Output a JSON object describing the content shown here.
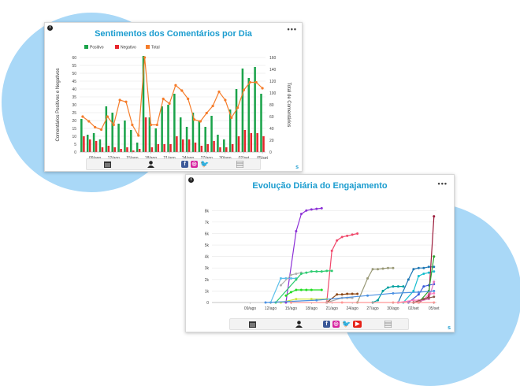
{
  "chart_data": [
    {
      "type": "bar",
      "title": "Sentimentos dos Comentários por Dia",
      "ylabel": "Comentários Positivos e Negativos",
      "y2label": "Total de Comentários",
      "ylim": [
        0,
        60
      ],
      "y2lim": [
        0,
        160
      ],
      "yticks": [
        0,
        5,
        10,
        15,
        20,
        25,
        30,
        35,
        40,
        45,
        50,
        55,
        60
      ],
      "y2ticks": [
        0,
        20,
        40,
        60,
        80,
        100,
        120,
        140,
        160
      ],
      "tick_labels": [
        "09/ago",
        "12/ago",
        "15/ago",
        "18/ago",
        "21/ago",
        "24/ago",
        "27/ago",
        "30/ago",
        "02/set",
        "05/set"
      ],
      "legend_position": "top",
      "colors": {
        "positive": "#1aa34a",
        "negative": "#e8262d",
        "total": "#f57c2a"
      },
      "series": [
        {
          "name": "Positivo",
          "values": [
            21,
            11,
            12,
            8,
            29,
            25,
            18,
            20,
            14,
            6,
            61,
            22,
            15,
            29,
            30,
            37,
            22,
            16,
            25,
            20,
            16,
            23,
            11,
            8,
            27,
            40,
            53,
            47,
            54,
            37
          ]
        },
        {
          "name": "Negativo",
          "values": [
            10,
            8,
            7,
            3,
            4,
            3,
            2,
            3,
            1,
            2,
            22,
            3,
            5,
            5,
            5,
            10,
            8,
            8,
            6,
            4,
            5,
            7,
            3,
            3,
            5,
            10,
            14,
            12,
            12,
            10
          ]
        },
        {
          "name": "Total",
          "values": [
            60,
            52,
            42,
            38,
            60,
            46,
            88,
            85,
            46,
            28,
            165,
            46,
            46,
            90,
            82,
            113,
            104,
            90,
            55,
            52,
            66,
            78,
            102,
            88,
            58,
            75,
            105,
            118,
            118,
            108
          ]
        }
      ],
      "footer_icons": [
        "calendar-icon",
        "user-icon",
        "facebook-icon",
        "instagram-icon",
        "twitter-icon",
        "table-icon"
      ]
    },
    {
      "type": "line",
      "title": "Evolução Diária do Engajamento",
      "ylim": [
        0,
        8500
      ],
      "yticks": [
        0,
        1000,
        2000,
        3000,
        4000,
        5000,
        6000,
        7000,
        8000
      ],
      "ytick_labels": [
        "0",
        "1k",
        "2k",
        "3k",
        "4k",
        "5k",
        "6k",
        "7k",
        "8k"
      ],
      "tick_labels": [
        "09/ago",
        "12/ago",
        "15/ago",
        "18/ago",
        "21/ago",
        "24/ago",
        "27/ago",
        "30/ago",
        "02/set",
        "05/set"
      ],
      "series": [
        {
          "color": "#8b2fd6",
          "points": [
            [
              14,
              0
            ],
            [
              16,
              6200
            ],
            [
              17,
              7700
            ],
            [
              18,
              8000
            ],
            [
              19,
              8100
            ],
            [
              20,
              8150
            ],
            [
              21,
              8200
            ]
          ]
        },
        {
          "color": "#f0476a",
          "points": [
            [
              22,
              0
            ],
            [
              23,
              4500
            ],
            [
              24,
              5400
            ],
            [
              25,
              5700
            ],
            [
              26,
              5800
            ],
            [
              27,
              5900
            ],
            [
              28,
              6000
            ]
          ]
        },
        {
          "color": "#5bc0eb",
          "points": [
            [
              11,
              0
            ],
            [
              13,
              2100
            ],
            [
              14,
              2100
            ],
            [
              15,
              2100
            ],
            [
              16,
              2100
            ]
          ]
        },
        {
          "color": "#b0b0b0",
          "points": [
            [
              13,
              1500
            ],
            [
              15,
              2400
            ],
            [
              16,
              2500
            ],
            [
              17,
              2600
            ]
          ]
        },
        {
          "color": "#2ecc71",
          "points": [
            [
              12,
              0
            ],
            [
              16,
              2000
            ],
            [
              17,
              2500
            ],
            [
              18,
              2600
            ],
            [
              19,
              2700
            ],
            [
              20,
              2700
            ],
            [
              21,
              2700
            ],
            [
              22,
              2750
            ],
            [
              23,
              2750
            ]
          ]
        },
        {
          "color": "#22dd22",
          "points": [
            [
              14,
              600
            ],
            [
              15,
              900
            ],
            [
              16,
              1100
            ],
            [
              17,
              1100
            ],
            [
              18,
              1100
            ],
            [
              19,
              1100
            ],
            [
              21,
              1100
            ]
          ]
        },
        {
          "color": "#999977",
          "points": [
            [
              28,
              0
            ],
            [
              30,
              2100
            ],
            [
              31,
              2900
            ],
            [
              32,
              2900
            ],
            [
              33,
              2950
            ],
            [
              34,
              3000
            ],
            [
              35,
              3000
            ]
          ]
        },
        {
          "color": "#8b4513",
          "points": [
            [
              22,
              0
            ],
            [
              24,
              700
            ],
            [
              25,
              700
            ],
            [
              26,
              750
            ],
            [
              27,
              750
            ],
            [
              28,
              750
            ]
          ]
        },
        {
          "color": "#aaaaaa",
          "points": [
            [
              22,
              0
            ],
            [
              25,
              400
            ],
            [
              26,
              400
            ],
            [
              27,
              400
            ]
          ]
        },
        {
          "color": "#c8e63c",
          "points": [
            [
              13,
              0
            ],
            [
              16,
              300
            ],
            [
              19,
              300
            ],
            [
              22,
              300
            ]
          ]
        },
        {
          "color": "#00a0a0",
          "points": [
            [
              31,
              0
            ],
            [
              32,
              200
            ],
            [
              33,
              1000
            ],
            [
              34,
              1300
            ],
            [
              35,
              1400
            ],
            [
              36,
              1400
            ],
            [
              37,
              1400
            ]
          ]
        },
        {
          "color": "#1f77b4",
          "points": [
            [
              36,
              0
            ],
            [
              38,
              2000
            ],
            [
              39,
              2900
            ],
            [
              40,
              3000
            ],
            [
              41,
              3000
            ],
            [
              42,
              3100
            ],
            [
              43,
              3100
            ]
          ]
        },
        {
          "color": "#17becf",
          "points": [
            [
              37,
              0
            ],
            [
              39,
              1000
            ],
            [
              40,
              2300
            ],
            [
              41,
              2500
            ],
            [
              42,
              2600
            ],
            [
              43,
              2700
            ]
          ]
        },
        {
          "color": "#3b5bdb",
          "points": [
            [
              38,
              0
            ],
            [
              40,
              700
            ],
            [
              41,
              1400
            ],
            [
              42,
              1500
            ],
            [
              43,
              1600
            ]
          ]
        },
        {
          "color": "#ff7fbf",
          "points": [
            [
              36,
              0
            ],
            [
              39,
              200
            ],
            [
              40,
              200
            ],
            [
              41,
              300
            ],
            [
              42,
              700
            ],
            [
              43,
              800
            ]
          ]
        },
        {
          "color": "#9b1b3a",
          "points": [
            [
              40,
              0
            ],
            [
              42,
              500
            ],
            [
              43,
              7500
            ]
          ]
        },
        {
          "color": "#2ca02c",
          "points": [
            [
              40,
              0
            ],
            [
              42,
              1000
            ],
            [
              43,
              4000
            ]
          ]
        },
        {
          "color": "#e377c2",
          "points": [
            [
              39,
              0
            ],
            [
              42,
              300
            ],
            [
              43,
              1800
            ]
          ]
        },
        {
          "color": "#8c564b",
          "points": [
            [
              39,
              0
            ],
            [
              41,
              300
            ],
            [
              42,
              400
            ],
            [
              43,
              500
            ]
          ]
        },
        {
          "color": "#4a90e2",
          "points": [
            [
              10,
              0
            ],
            [
              20,
              200
            ],
            [
              30,
              600
            ],
            [
              35,
              800
            ],
            [
              40,
              900
            ],
            [
              43,
              1000
            ]
          ]
        },
        {
          "color": "#ff9896",
          "points": [
            [
              15,
              0
            ],
            [
              25,
              0
            ],
            [
              35,
              0
            ],
            [
              40,
              0
            ],
            [
              43,
              0
            ]
          ]
        }
      ],
      "footer_icons": [
        "calendar-icon",
        "user-icon",
        "facebook-icon",
        "instagram-icon",
        "twitter-icon",
        "youtube-icon",
        "table-icon"
      ]
    }
  ]
}
